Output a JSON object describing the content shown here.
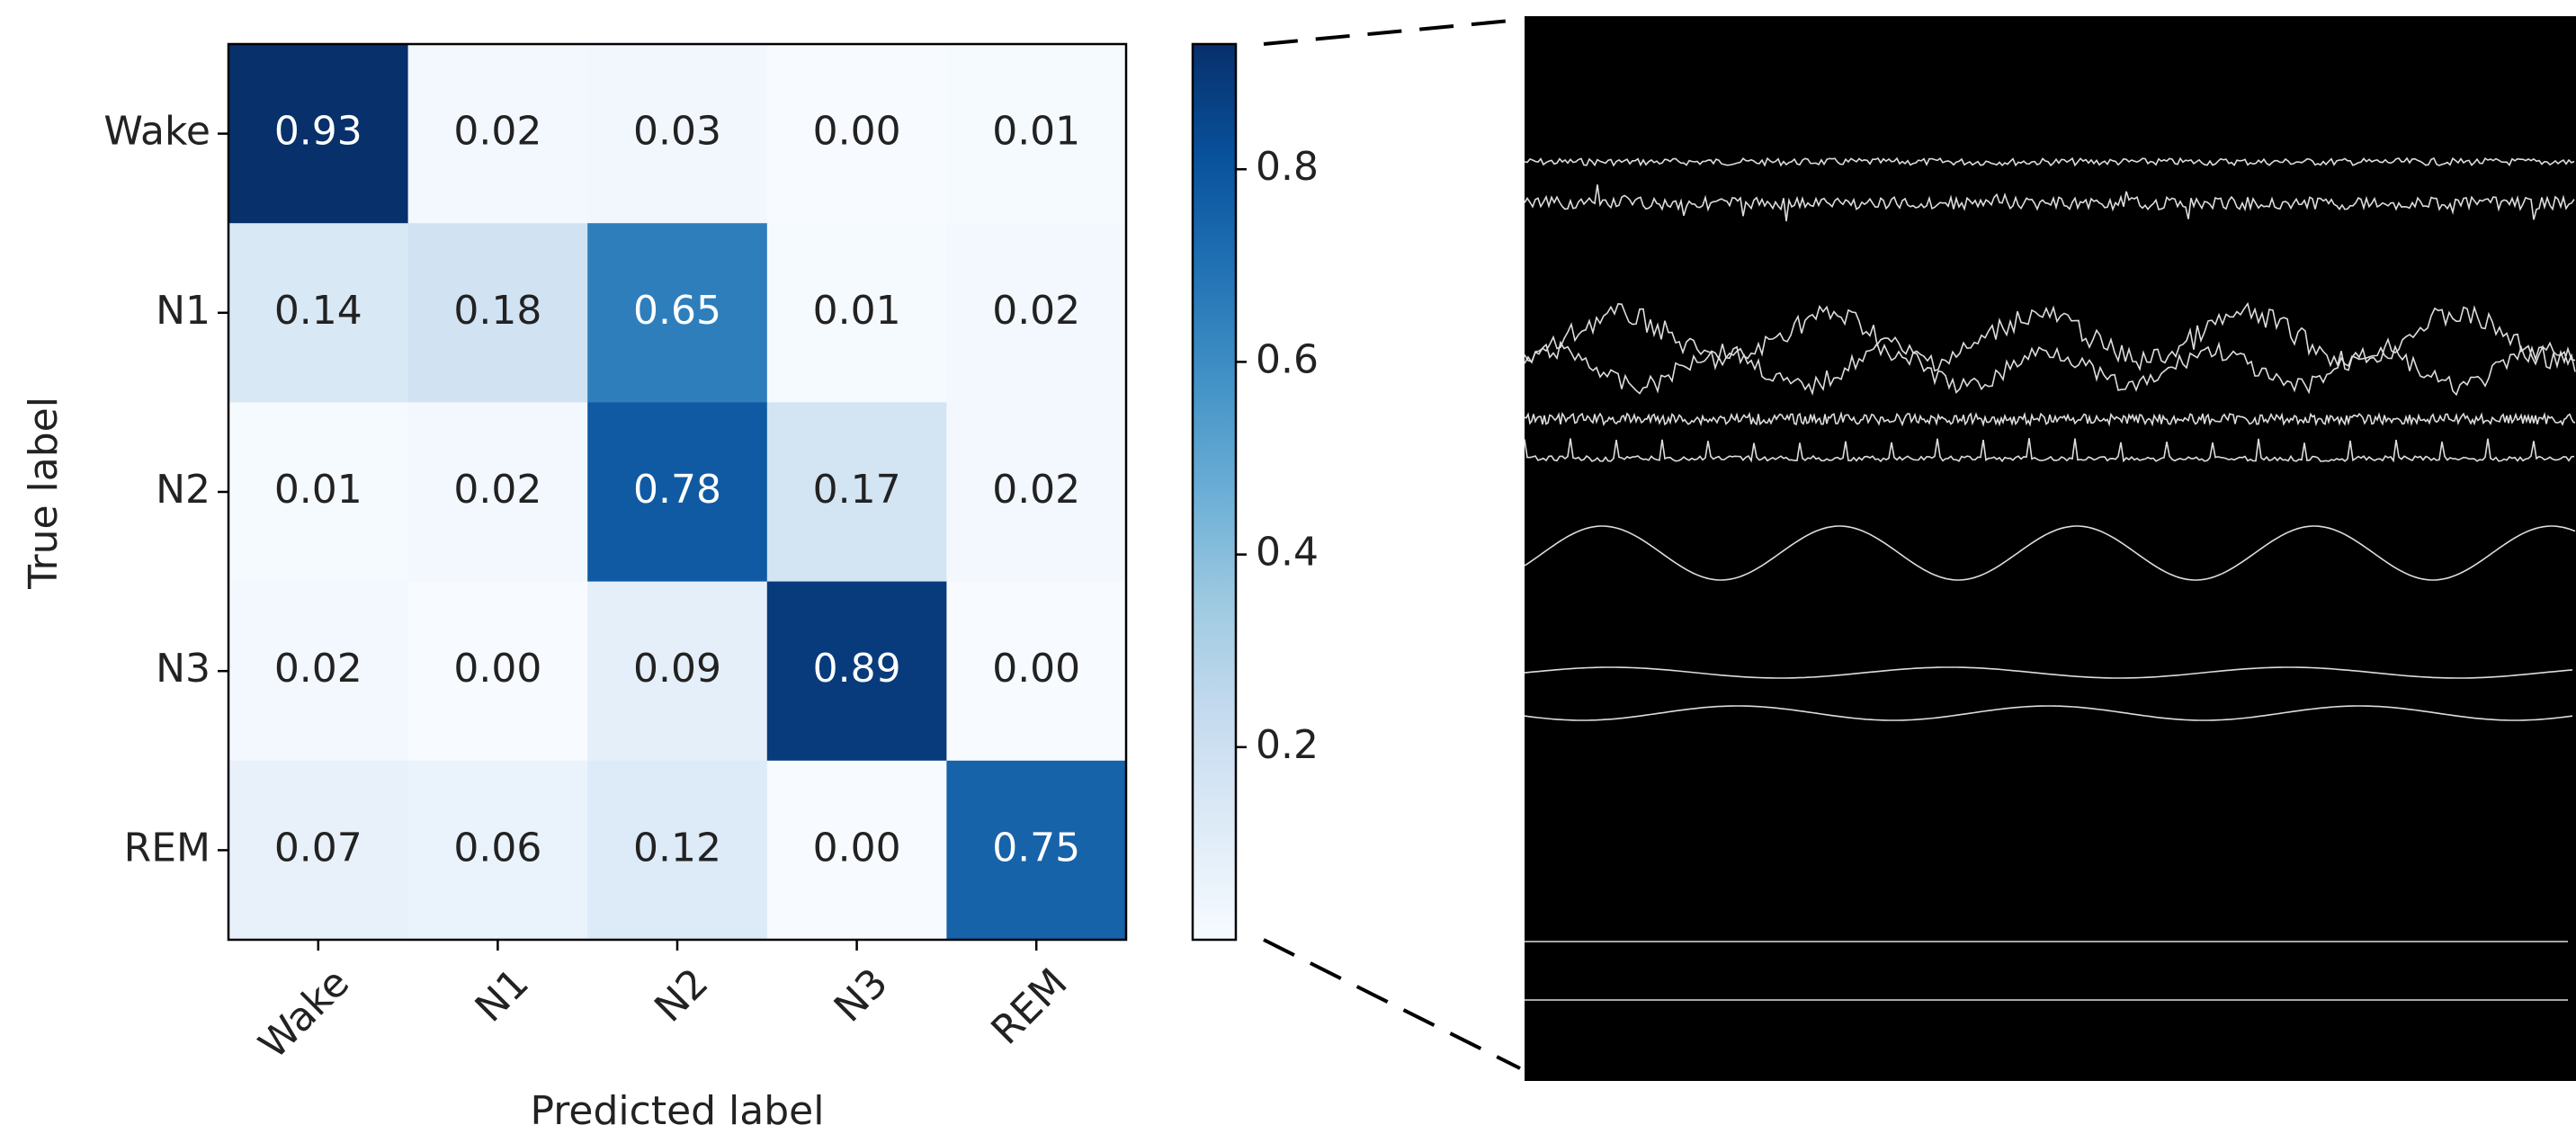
{
  "chart_data": {
    "type": "heatmap",
    "xlabel": "Predicted label",
    "ylabel": "True label",
    "x_categories": [
      "Wake",
      "N1",
      "N2",
      "N3",
      "REM"
    ],
    "y_categories": [
      "Wake",
      "N1",
      "N2",
      "N3",
      "REM"
    ],
    "values": [
      [
        0.93,
        0.02,
        0.03,
        0.0,
        0.01
      ],
      [
        0.14,
        0.18,
        0.65,
        0.01,
        0.02
      ],
      [
        0.01,
        0.02,
        0.78,
        0.17,
        0.02
      ],
      [
        0.02,
        0.0,
        0.09,
        0.89,
        0.0
      ],
      [
        0.07,
        0.06,
        0.12,
        0.0,
        0.75
      ]
    ],
    "value_labels": [
      [
        "0.93",
        "0.02",
        "0.03",
        "0.00",
        "0.01"
      ],
      [
        "0.14",
        "0.18",
        "0.65",
        "0.01",
        "0.02"
      ],
      [
        "0.01",
        "0.02",
        "0.78",
        "0.17",
        "0.02"
      ],
      [
        "0.02",
        "0.00",
        "0.09",
        "0.89",
        "0.00"
      ],
      [
        "0.07",
        "0.06",
        "0.12",
        "0.00",
        "0.75"
      ]
    ],
    "colormap": [
      "#f7fbff",
      "#deebf7",
      "#c6dbef",
      "#9ecae1",
      "#6baed6",
      "#4292c6",
      "#2171b5",
      "#08519c",
      "#08306b"
    ],
    "clim": [
      0,
      0.93
    ],
    "cticks": [
      0.2,
      0.4,
      0.6,
      0.8
    ]
  }
}
